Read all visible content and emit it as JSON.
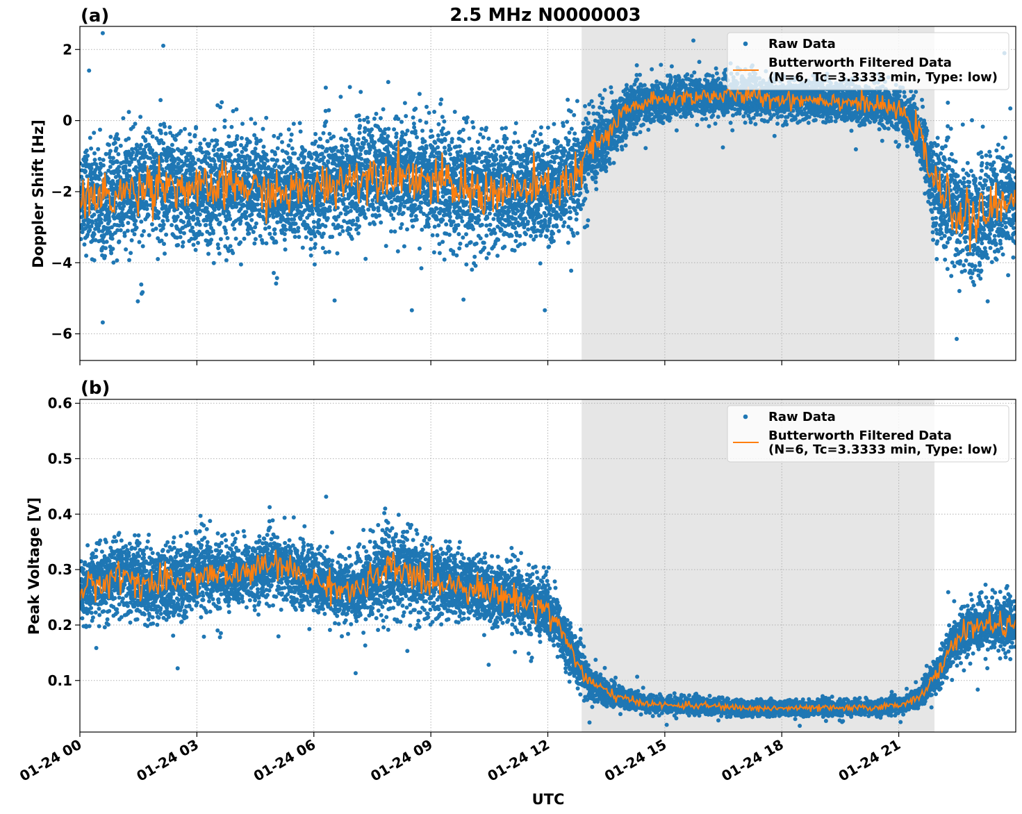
{
  "figure": {
    "title": "2.5 MHz N0000003",
    "xlabel": "UTC",
    "shaded_interval": [
      "01-24 12:52",
      "01-24 21:55"
    ],
    "colors": {
      "raw": "#1f77b4",
      "filtered": "#ff7f0e",
      "shade": "#e6e6e6",
      "grid": "#b0b0b0"
    }
  },
  "chart_data": [
    {
      "panel_label": "(a)",
      "type": "scatter",
      "title": "2.5 MHz N0000003",
      "xlabel": "",
      "ylabel": "Doppler Shift [Hz]",
      "ylim": [
        -6.75,
        2.65
      ],
      "yticks": [
        -6,
        -4,
        -2,
        0,
        2
      ],
      "ytick_labels": [
        "−6",
        "−4",
        "−2",
        "0",
        "2"
      ],
      "xlim_hours": [
        0,
        24
      ],
      "xticks_hours": [
        0,
        3,
        6,
        9,
        12,
        15,
        18,
        21
      ],
      "xtick_labels": [
        "01-24 00",
        "01-24 03",
        "01-24 06",
        "01-24 09",
        "01-24 12",
        "01-24 15",
        "01-24 18",
        "01-24 21"
      ],
      "grid": true,
      "legend": "upper right",
      "series": [
        {
          "name": "Raw Data",
          "type": "scatter",
          "x": [
            "00:00",
            "01:00",
            "02:00",
            "03:00",
            "04:00",
            "05:00",
            "06:00",
            "07:00",
            "08:00",
            "09:00",
            "10:00",
            "11:00",
            "12:00",
            "12:45",
            "13:00",
            "13:30",
            "14:00",
            "14:30",
            "15:00",
            "16:00",
            "17:00",
            "18:00",
            "19:00",
            "20:00",
            "21:00",
            "21:30",
            "21:55",
            "22:30",
            "23:00",
            "23:59"
          ],
          "y": [
            -2.2,
            -2.1,
            -1.7,
            -2.0,
            -1.8,
            -2.1,
            -1.9,
            -1.6,
            -1.4,
            -1.7,
            -2.0,
            -2.0,
            -1.9,
            -1.7,
            -0.9,
            -0.5,
            0.3,
            0.5,
            0.6,
            0.7,
            0.7,
            0.6,
            0.6,
            0.5,
            0.3,
            -0.3,
            -1.8,
            -2.6,
            -2.8,
            -2.1
          ],
          "spread": [
            1.3,
            1.3,
            1.4,
            1.3,
            1.3,
            1.2,
            1.3,
            1.3,
            1.3,
            1.3,
            1.5,
            1.3,
            1.3,
            1.3,
            1.0,
            0.9,
            0.6,
            0.5,
            0.5,
            0.5,
            0.5,
            0.5,
            0.5,
            0.5,
            0.5,
            0.7,
            1.2,
            1.4,
            1.4,
            1.3
          ]
        },
        {
          "name": "Butterworth Filtered Data\n(N=6, Tc=3.3333 min, Type: low)",
          "type": "line",
          "x": [
            "00:00",
            "01:00",
            "02:00",
            "03:00",
            "04:00",
            "05:00",
            "06:00",
            "07:00",
            "08:00",
            "09:00",
            "10:00",
            "11:00",
            "12:00",
            "12:45",
            "13:00",
            "13:30",
            "14:00",
            "14:30",
            "15:00",
            "16:00",
            "17:00",
            "18:00",
            "19:00",
            "20:00",
            "21:00",
            "21:30",
            "21:55",
            "22:30",
            "23:00",
            "23:59"
          ],
          "y": [
            -2.2,
            -2.1,
            -1.7,
            -2.0,
            -1.8,
            -2.1,
            -1.9,
            -1.6,
            -1.4,
            -1.7,
            -2.0,
            -2.0,
            -1.9,
            -1.7,
            -0.9,
            -0.5,
            0.3,
            0.5,
            0.6,
            0.7,
            0.7,
            0.6,
            0.6,
            0.5,
            0.3,
            -0.3,
            -1.8,
            -2.6,
            -2.8,
            -2.1
          ]
        }
      ],
      "legend_labels": [
        "Raw Data",
        "Butterworth Filtered Data",
        "(N=6, Tc=3.3333 min, Type: low)"
      ]
    },
    {
      "panel_label": "(b)",
      "type": "scatter",
      "title": "",
      "xlabel": "UTC",
      "ylabel": "Peak Voltage [V]",
      "ylim": [
        0.007,
        0.607
      ],
      "yticks": [
        0.1,
        0.2,
        0.3,
        0.4,
        0.5,
        0.6
      ],
      "ytick_labels": [
        "0.1",
        "0.2",
        "0.3",
        "0.4",
        "0.5",
        "0.6"
      ],
      "xlim_hours": [
        0,
        24
      ],
      "xticks_hours": [
        0,
        3,
        6,
        9,
        12,
        15,
        18,
        21
      ],
      "xtick_labels": [
        "01-24 00",
        "01-24 03",
        "01-24 06",
        "01-24 09",
        "01-24 12",
        "01-24 15",
        "01-24 18",
        "01-24 21"
      ],
      "grid": true,
      "legend": "upper right",
      "series": [
        {
          "name": "Raw Data",
          "type": "scatter",
          "x": [
            "00:00",
            "01:00",
            "02:00",
            "03:00",
            "04:00",
            "05:00",
            "06:00",
            "07:00",
            "08:00",
            "09:00",
            "10:00",
            "11:00",
            "12:00",
            "12:30",
            "13:00",
            "13:30",
            "14:00",
            "15:00",
            "16:00",
            "17:00",
            "18:00",
            "19:00",
            "20:00",
            "21:00",
            "21:30",
            "22:00",
            "22:30",
            "23:00",
            "23:59"
          ],
          "y": [
            0.26,
            0.29,
            0.27,
            0.29,
            0.29,
            0.31,
            0.28,
            0.26,
            0.3,
            0.28,
            0.27,
            0.25,
            0.23,
            0.17,
            0.1,
            0.08,
            0.065,
            0.055,
            0.055,
            0.05,
            0.05,
            0.05,
            0.05,
            0.055,
            0.07,
            0.11,
            0.18,
            0.2,
            0.2
          ],
          "spread": [
            0.05,
            0.06,
            0.06,
            0.06,
            0.05,
            0.05,
            0.05,
            0.05,
            0.07,
            0.06,
            0.05,
            0.05,
            0.05,
            0.04,
            0.03,
            0.02,
            0.015,
            0.012,
            0.012,
            0.012,
            0.012,
            0.012,
            0.012,
            0.012,
            0.015,
            0.03,
            0.04,
            0.04,
            0.04
          ]
        },
        {
          "name": "Butterworth Filtered Data\n(N=6, Tc=3.3333 min, Type: low)",
          "type": "line",
          "x": [
            "00:00",
            "01:00",
            "02:00",
            "03:00",
            "04:00",
            "05:00",
            "06:00",
            "07:00",
            "08:00",
            "09:00",
            "10:00",
            "11:00",
            "12:00",
            "12:30",
            "13:00",
            "13:30",
            "14:00",
            "15:00",
            "16:00",
            "17:00",
            "18:00",
            "19:00",
            "20:00",
            "21:00",
            "21:30",
            "22:00",
            "22:30",
            "23:00",
            "23:59"
          ],
          "y": [
            0.26,
            0.29,
            0.27,
            0.29,
            0.29,
            0.31,
            0.28,
            0.26,
            0.3,
            0.28,
            0.27,
            0.25,
            0.23,
            0.17,
            0.1,
            0.08,
            0.065,
            0.055,
            0.055,
            0.05,
            0.05,
            0.05,
            0.05,
            0.055,
            0.07,
            0.11,
            0.18,
            0.2,
            0.2
          ]
        }
      ],
      "legend_labels": [
        "Raw Data",
        "Butterworth Filtered Data",
        "(N=6, Tc=3.3333 min, Type: low)"
      ]
    }
  ]
}
